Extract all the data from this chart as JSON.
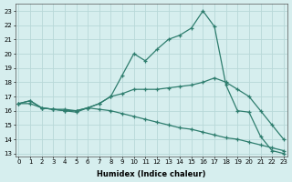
{
  "xlabel": "Humidex (Indice chaleur)",
  "background_color": "#d6eeee",
  "grid_color": "#b8d8d8",
  "line_color": "#2e7d6e",
  "x_ticks": [
    0,
    1,
    2,
    3,
    4,
    5,
    6,
    7,
    8,
    9,
    10,
    11,
    12,
    13,
    14,
    15,
    16,
    17,
    18,
    19,
    20,
    21,
    22,
    23
  ],
  "y_ticks": [
    13,
    14,
    15,
    16,
    17,
    18,
    19,
    20,
    21,
    22,
    23
  ],
  "xlim": [
    -0.3,
    23.3
  ],
  "ylim": [
    12.8,
    23.5
  ],
  "line_top_x": [
    0,
    1,
    2,
    3,
    4,
    5,
    6,
    7,
    8,
    9,
    10,
    11,
    12,
    13,
    14,
    15,
    16,
    17,
    18,
    19,
    20,
    21,
    22,
    23
  ],
  "line_top_y": [
    16.5,
    16.7,
    16.2,
    16.1,
    16.0,
    15.9,
    16.2,
    16.5,
    17.0,
    18.5,
    20.0,
    19.5,
    20.3,
    21.0,
    21.3,
    21.8,
    23.0,
    21.9,
    17.8,
    16.0,
    15.9,
    14.2,
    13.2,
    13.0
  ],
  "line_mid_x": [
    0,
    1,
    2,
    3,
    4,
    5,
    6,
    7,
    8,
    9,
    10,
    11,
    12,
    13,
    14,
    15,
    16,
    17,
    18,
    19,
    20,
    21,
    22,
    23
  ],
  "line_mid_y": [
    16.5,
    16.7,
    16.2,
    16.1,
    16.0,
    16.0,
    16.2,
    16.5,
    17.0,
    17.2,
    17.5,
    17.5,
    17.5,
    17.6,
    17.7,
    17.8,
    18.0,
    18.3,
    18.0,
    17.5,
    17.0,
    16.0,
    15.0,
    14.0
  ],
  "line_bot_x": [
    0,
    1,
    2,
    3,
    4,
    5,
    6,
    7,
    8,
    9,
    10,
    11,
    12,
    13,
    14,
    15,
    16,
    17,
    18,
    19,
    20,
    21,
    22,
    23
  ],
  "line_bot_y": [
    16.5,
    16.5,
    16.2,
    16.1,
    16.1,
    16.0,
    16.2,
    16.1,
    16.0,
    15.8,
    15.6,
    15.4,
    15.2,
    15.0,
    14.8,
    14.7,
    14.5,
    14.3,
    14.1,
    14.0,
    13.8,
    13.6,
    13.4,
    13.2
  ]
}
